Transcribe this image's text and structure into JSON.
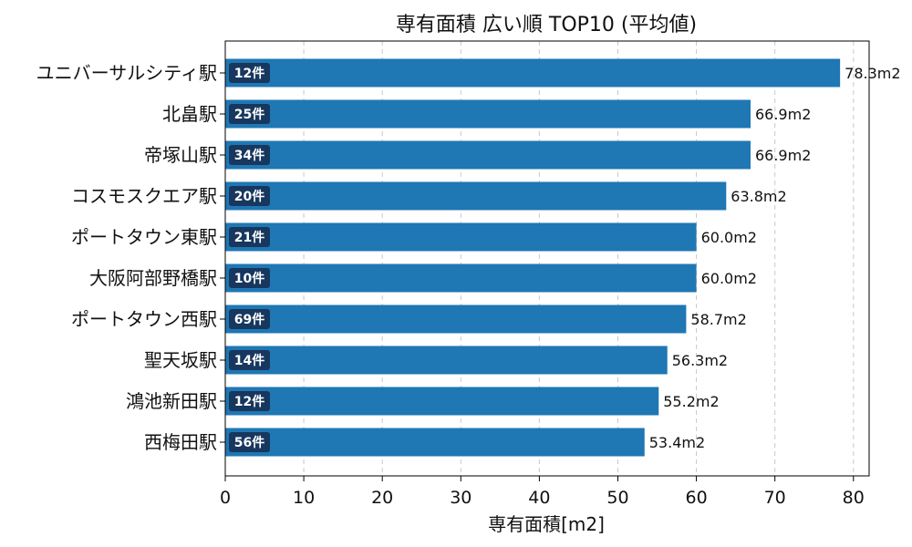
{
  "chart_data": {
    "type": "bar",
    "orientation": "horizontal",
    "title": "専有面積 広い順 TOP10 (平均値)",
    "xlabel": "専有面積[m2]",
    "ylabel": "",
    "xlim": [
      0,
      82
    ],
    "xticks": [
      0,
      10,
      20,
      30,
      40,
      50,
      60,
      70,
      80
    ],
    "grid": "x-dashed",
    "categories": [
      "ユニバーサルシティ駅",
      "北畠駅",
      "帝塚山駅",
      "コスモスクエア駅",
      "ポートタウン東駅",
      "大阪阿部野橋駅",
      "ポートタウン西駅",
      "聖天坂駅",
      "鴻池新田駅",
      "西梅田駅"
    ],
    "values": [
      78.3,
      66.9,
      66.9,
      63.8,
      60.0,
      60.0,
      58.7,
      56.3,
      55.2,
      53.4
    ],
    "value_labels": [
      "78.3m2",
      "66.9m2",
      "66.9m2",
      "63.8m2",
      "60.0m2",
      "60.0m2",
      "58.7m2",
      "56.3m2",
      "55.2m2",
      "53.4m2"
    ],
    "counts": [
      "12件",
      "25件",
      "34件",
      "20件",
      "21件",
      "10件",
      "69件",
      "14件",
      "12件",
      "56件"
    ],
    "colors": {
      "bar": "#1f77b4",
      "count_badge": "#17375e"
    }
  }
}
